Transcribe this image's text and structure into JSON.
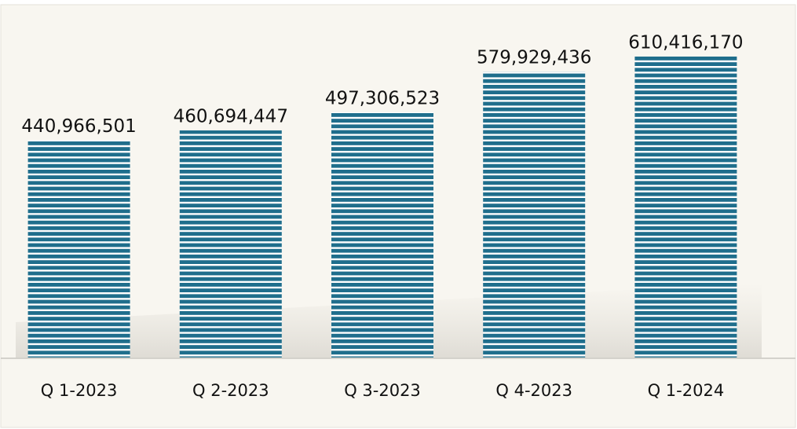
{
  "chart_data": {
    "type": "bar",
    "categories": [
      "Q 1-2023",
      "Q 2-2023",
      "Q 3-2023",
      "Q 4-2023",
      "Q 1-2024"
    ],
    "values": [
      440966501,
      460694447,
      497306523,
      579929436,
      610416170
    ],
    "value_labels": [
      "440,966,501",
      "460,694,447",
      "497,306,523",
      "579,929,436",
      "610,416,170"
    ],
    "color": "#1f6e8c"
  }
}
